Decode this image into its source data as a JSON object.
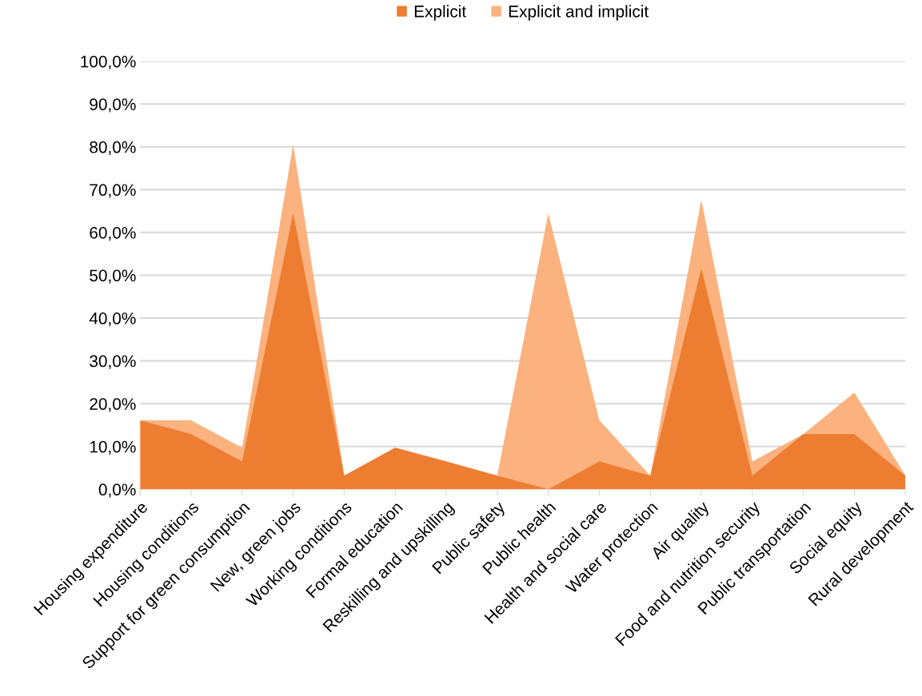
{
  "chart_data": {
    "type": "area",
    "categories": [
      "Housing expenditure",
      "Housing conditions",
      "Support for green consumption",
      "New, green jobs",
      "Working conditions",
      "Formal education",
      "Reskilling and upskilling",
      "Public safety",
      "Public health",
      "Health and social care",
      "Water protection",
      "Air quality",
      "Food and nutrition security",
      "Public transportation",
      "Social equity",
      "Rural development"
    ],
    "series": [
      {
        "name": "Explicit",
        "color": "#ed7d31",
        "values": [
          16.1,
          12.9,
          6.5,
          64.5,
          3.2,
          9.7,
          6.5,
          3.2,
          0,
          6.5,
          3.2,
          51.6,
          3.2,
          12.9,
          12.9,
          3.2
        ]
      },
      {
        "name": "Explicit and implicit",
        "color": "#fbb27e",
        "values": [
          16.1,
          16.1,
          9.7,
          80.6,
          3.2,
          9.7,
          6.5,
          3.2,
          64.5,
          16.1,
          3.2,
          67.7,
          6.5,
          12.9,
          22.6,
          3.2
        ]
      }
    ],
    "ylim": [
      0,
      100
    ],
    "yticks": [
      {
        "value": 0,
        "label": "0,0%"
      },
      {
        "value": 10,
        "label": "10,0%"
      },
      {
        "value": 20,
        "label": "20,0%"
      },
      {
        "value": 30,
        "label": "30,0%"
      },
      {
        "value": 40,
        "label": "40,0%"
      },
      {
        "value": 50,
        "label": "50,0%"
      },
      {
        "value": 60,
        "label": "60,0%"
      },
      {
        "value": 70,
        "label": "70,0%"
      },
      {
        "value": 80,
        "label": "80,0%"
      },
      {
        "value": 90,
        "label": "90,0%"
      },
      {
        "value": 100,
        "label": "100,0%"
      }
    ],
    "grid": "y",
    "legend": "top"
  }
}
